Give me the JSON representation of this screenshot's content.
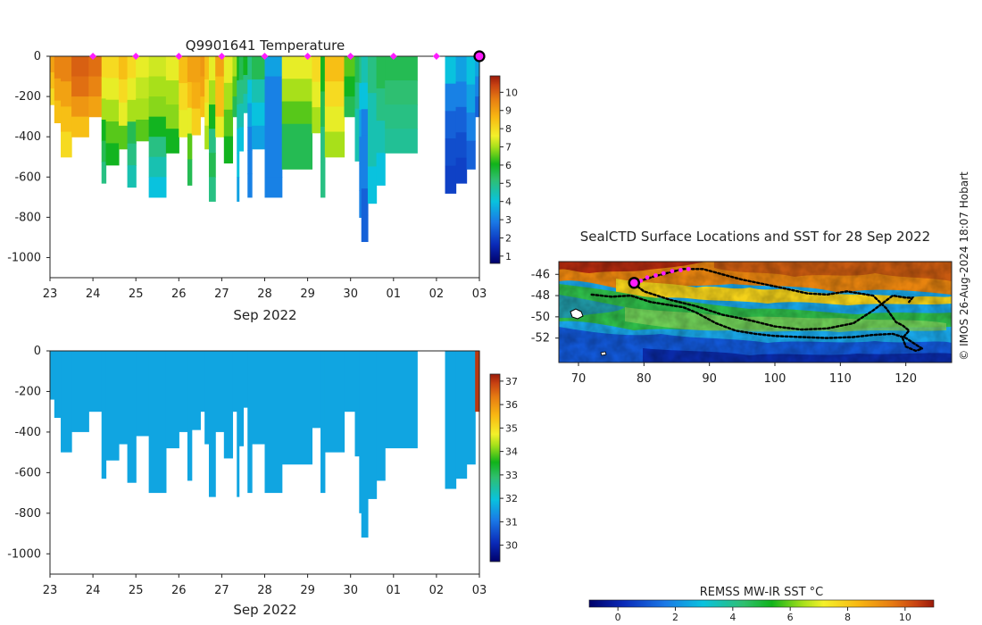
{
  "chart_data": [
    {
      "type": "heatmap",
      "title": "Q9901641  Temperature",
      "xlabel": "Sep 2022",
      "ylabel": "",
      "x_ticks": [
        "23",
        "24",
        "25",
        "26",
        "27",
        "28",
        "29",
        "30",
        "01",
        "02",
        "03"
      ],
      "y_ticks": [
        "0",
        "-200",
        "-400",
        "-600",
        "-800",
        "-1000"
      ],
      "ylim": [
        -1100,
        0
      ],
      "colorbar": {
        "ticks": [
          "1",
          "2",
          "3",
          "4",
          "5",
          "6",
          "7",
          "8",
          "9",
          "10"
        ],
        "range": [
          0.6,
          10.9
        ]
      },
      "surface_markers_days": [
        1,
        2,
        3,
        4,
        5,
        6,
        7,
        8,
        9
      ],
      "current_marker_day": 10,
      "profiles": [
        {
          "t0": 0.0,
          "t1": 0.1,
          "d": 240,
          "c": [
            9,
            8.5,
            8
          ]
        },
        {
          "t0": 0.1,
          "t1": 0.25,
          "d": 330,
          "c": [
            9.5,
            9,
            8.5
          ]
        },
        {
          "t0": 0.25,
          "t1": 0.5,
          "d": 500,
          "c": [
            9.5,
            9,
            8.5,
            8
          ]
        },
        {
          "t0": 0.5,
          "t1": 0.9,
          "d": 400,
          "c": [
            10,
            9.8,
            9.2,
            8.5
          ]
        },
        {
          "t0": 0.9,
          "t1": 1.2,
          "d": 300,
          "c": [
            9.8,
            9.5,
            9
          ]
        },
        {
          "t0": 1.2,
          "t1": 1.3,
          "d": 630,
          "c": [
            8,
            7.5,
            7,
            6,
            5.5,
            5
          ]
        },
        {
          "t0": 1.3,
          "t1": 1.6,
          "d": 540,
          "c": [
            8,
            7.5,
            7,
            6.5,
            6
          ]
        },
        {
          "t0": 1.6,
          "t1": 1.8,
          "d": 460,
          "c": [
            8.5,
            8,
            7.5,
            6.5
          ]
        },
        {
          "t0": 1.8,
          "t1": 2.0,
          "d": 650,
          "c": [
            8,
            7.5,
            7,
            5.5,
            5,
            4.5
          ]
        },
        {
          "t0": 2.0,
          "t1": 2.3,
          "d": 420,
          "c": [
            7.5,
            7.2,
            7,
            6.5
          ]
        },
        {
          "t0": 2.3,
          "t1": 2.7,
          "d": 700,
          "c": [
            7.3,
            7,
            6.8,
            6,
            5,
            4.5,
            4
          ]
        },
        {
          "t0": 2.7,
          "t1": 3.0,
          "d": 480,
          "c": [
            7.5,
            7,
            6.8,
            6
          ]
        },
        {
          "t0": 3.0,
          "t1": 3.2,
          "d": 400,
          "c": [
            8.5,
            8,
            7.5
          ]
        },
        {
          "t0": 3.2,
          "t1": 3.3,
          "d": 640,
          "c": [
            9,
            8.5,
            7.5,
            6.5,
            5.5
          ]
        },
        {
          "t0": 3.3,
          "t1": 3.5,
          "d": 390,
          "c": [
            9,
            8.8,
            8.2
          ]
        },
        {
          "t0": 3.5,
          "t1": 3.6,
          "d": 300,
          "c": [
            9.2,
            9,
            8.5
          ]
        },
        {
          "t0": 3.6,
          "t1": 3.7,
          "d": 460,
          "c": [
            8.5,
            8,
            7.5,
            7
          ]
        },
        {
          "t0": 3.7,
          "t1": 3.85,
          "d": 720,
          "c": [
            7.5,
            7,
            6,
            5,
            5.5,
            5
          ]
        },
        {
          "t0": 3.85,
          "t1": 4.05,
          "d": 400,
          "c": [
            9,
            8.5,
            8.5,
            7.5
          ]
        },
        {
          "t0": 4.05,
          "t1": 4.25,
          "d": 530,
          "c": [
            7.5,
            7,
            6.5,
            6
          ]
        },
        {
          "t0": 4.25,
          "t1": 4.35,
          "d": 300,
          "c": [
            7,
            6.5,
            5.5
          ]
        },
        {
          "t0": 4.35,
          "t1": 4.4,
          "d": 720,
          "c": [
            6,
            5,
            4.5,
            4,
            4,
            3.5
          ]
        },
        {
          "t0": 4.4,
          "t1": 4.5,
          "d": 470,
          "c": [
            5.5,
            5,
            4.5,
            4
          ]
        },
        {
          "t0": 4.5,
          "t1": 4.6,
          "d": 280,
          "c": [
            6,
            5,
            4.5
          ]
        },
        {
          "t0": 4.6,
          "t1": 4.7,
          "d": 700,
          "c": [
            5,
            4,
            3.5,
            3,
            3,
            3
          ]
        },
        {
          "t0": 4.7,
          "t1": 5.0,
          "d": 460,
          "c": [
            5.5,
            4.5,
            4,
            3.5
          ]
        },
        {
          "t0": 5.0,
          "t1": 5.4,
          "d": 700,
          "c": [
            3.5,
            3,
            3,
            3,
            3,
            3,
            3
          ]
        },
        {
          "t0": 5.4,
          "t1": 6.1,
          "d": 560,
          "c": [
            7.5,
            7,
            6.5,
            5.5,
            5.5
          ]
        },
        {
          "t0": 6.1,
          "t1": 6.3,
          "d": 380,
          "c": [
            8,
            7.5,
            7
          ]
        },
        {
          "t0": 6.3,
          "t1": 6.4,
          "d": 700,
          "c": [
            6,
            5.5,
            5,
            5
          ]
        },
        {
          "t0": 6.4,
          "t1": 6.85,
          "d": 500,
          "c": [
            8.5,
            8,
            7.5,
            7
          ]
        },
        {
          "t0": 6.85,
          "t1": 7.1,
          "d": 300,
          "c": [
            6.5,
            6,
            5.5
          ]
        },
        {
          "t0": 7.1,
          "t1": 7.2,
          "d": 520,
          "c": [
            5.5,
            5,
            4.5,
            4.5
          ]
        },
        {
          "t0": 7.2,
          "t1": 7.25,
          "d": 800,
          "c": [
            5,
            4,
            3.5,
            3,
            3,
            3
          ]
        },
        {
          "t0": 7.25,
          "t1": 7.4,
          "d": 920,
          "c": [
            4.5,
            4,
            3,
            3,
            3,
            2.5,
            2.5
          ]
        },
        {
          "t0": 7.4,
          "t1": 7.6,
          "d": 730,
          "c": [
            5,
            4.5,
            4.5,
            4
          ]
        },
        {
          "t0": 7.6,
          "t1": 7.8,
          "d": 640,
          "c": [
            5.5,
            5,
            4.5,
            4
          ]
        },
        {
          "t0": 7.8,
          "t1": 8.55,
          "d": 480,
          "c": [
            5.5,
            5.2,
            5,
            4.8
          ]
        },
        {
          "t0": 9.2,
          "t1": 9.45,
          "d": 680,
          "c": [
            4,
            3,
            2.5,
            2.2,
            2
          ]
        },
        {
          "t0": 9.45,
          "t1": 9.7,
          "d": 630,
          "c": [
            3.5,
            3,
            2.5,
            2.2,
            2
          ]
        },
        {
          "t0": 9.7,
          "t1": 9.9,
          "d": 560,
          "c": [
            4,
            3.5,
            3,
            2.5
          ]
        },
        {
          "t0": 9.9,
          "t1": 10.0,
          "d": 300,
          "c": [
            3.5,
            3,
            2.5
          ]
        }
      ]
    },
    {
      "type": "heatmap",
      "title": "",
      "xlabel": "Sep 2022",
      "ylabel": "",
      "x_ticks": [
        "23",
        "24",
        "25",
        "26",
        "27",
        "28",
        "29",
        "30",
        "01",
        "02",
        "03"
      ],
      "y_ticks": [
        "0",
        "-200",
        "-400",
        "-600",
        "-800",
        "-1000"
      ],
      "ylim": [
        -1100,
        0
      ],
      "colorbar": {
        "ticks": [
          "30",
          "31",
          "32",
          "33",
          "34",
          "35",
          "36",
          "37"
        ],
        "range": [
          29.3,
          37.3
        ]
      },
      "fill_value": 31.6,
      "last_profile_value": 37.0,
      "profiles_from": 0
    },
    {
      "type": "heatmap",
      "title": "SealCTD Surface Locations and SST for 28 Sep 2022",
      "xlabel": "",
      "ylabel": "",
      "x_ticks": [
        "70",
        "80",
        "90",
        "100",
        "110",
        "120"
      ],
      "y_ticks": [
        "-46",
        "-48",
        "-50",
        "-52"
      ],
      "xlim": [
        67,
        127
      ],
      "ylim": [
        -54.3,
        -44.8
      ],
      "colorbar": {
        "label": "REMSS MW-IR SST °C",
        "ticks": [
          "0",
          "2",
          "4",
          "6",
          "8",
          "10"
        ],
        "range": [
          -1,
          11
        ]
      },
      "track": [
        [
          72,
          -47.9
        ],
        [
          75,
          -48.1
        ],
        [
          78,
          -48.0
        ],
        [
          81,
          -48.6
        ],
        [
          84,
          -48.9
        ],
        [
          86,
          -49.1
        ],
        [
          88,
          -49.6
        ],
        [
          91,
          -50.6
        ],
        [
          94,
          -51.3
        ],
        [
          97,
          -51.6
        ],
        [
          100,
          -51.8
        ],
        [
          104,
          -51.9
        ],
        [
          108,
          -52.0
        ],
        [
          112,
          -51.9
        ],
        [
          115,
          -51.7
        ],
        [
          118,
          -51.6
        ],
        [
          120,
          -52.0
        ],
        [
          121.5,
          -52.6
        ],
        [
          122.5,
          -53.0
        ],
        [
          121.5,
          -53.2
        ],
        [
          120,
          -52.8
        ],
        [
          119.5,
          -52.0
        ],
        [
          120.5,
          -51.3
        ],
        [
          119.5,
          -50.8
        ],
        [
          118.5,
          -50.5
        ],
        [
          117,
          -49.2
        ],
        [
          115,
          -48.0
        ],
        [
          111,
          -47.6
        ],
        [
          108,
          -47.9
        ],
        [
          105,
          -47.8
        ],
        [
          102,
          -47.4
        ],
        [
          99,
          -47.0
        ],
        [
          95,
          -46.5
        ],
        [
          92,
          -46.0
        ],
        [
          89,
          -45.5
        ],
        [
          86,
          -45.5
        ],
        [
          84,
          -45.8
        ],
        [
          81.5,
          -46.2
        ],
        [
          79.5,
          -46.6
        ],
        [
          78.5,
          -46.9
        ],
        [
          80,
          -47.6
        ],
        [
          84,
          -48.4
        ],
        [
          88,
          -49.0
        ],
        [
          92,
          -49.8
        ],
        [
          96,
          -50.3
        ],
        [
          100,
          -50.9
        ],
        [
          104,
          -51.2
        ],
        [
          108,
          -51.1
        ],
        [
          112,
          -50.6
        ],
        [
          115,
          -49.4
        ],
        [
          118,
          -48.0
        ],
        [
          120,
          -48.2
        ],
        [
          121,
          -48.2
        ],
        [
          120.5,
          -48.6
        ]
      ],
      "recent_points": [
        [
          79.5,
          -46.6
        ],
        [
          80.5,
          -46.3
        ],
        [
          81.8,
          -46.1
        ],
        [
          83,
          -45.9
        ],
        [
          84.3,
          -45.7
        ],
        [
          85.6,
          -45.6
        ],
        [
          86.8,
          -45.5
        ]
      ],
      "current_position": [
        78.5,
        -46.8
      ]
    }
  ],
  "credit": "© IMOS 26-Aug-2024 18:07 Hobart"
}
